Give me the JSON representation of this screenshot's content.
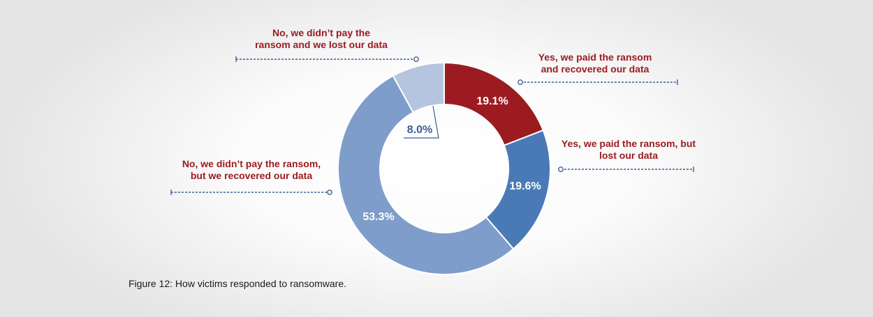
{
  "chart_data": {
    "type": "pie",
    "variant": "donut",
    "title": "",
    "slices": [
      {
        "label": "Yes, we paid the ransom\nand recovered our data",
        "value": 19.1,
        "display": "19.1%",
        "color": "#9b1b20"
      },
      {
        "label": "Yes, we paid the ransom, but\nlost our data",
        "value": 19.6,
        "display": "19.6%",
        "color": "#4a7ab5"
      },
      {
        "label": "No, we didn’t pay the ransom,\nbut we recovered our data",
        "value": 53.3,
        "display": "53.3%",
        "color": "#7f9dca"
      },
      {
        "label": "No, we didn’t pay the\nransom and we lost our data",
        "value": 8.0,
        "display": "8.0%",
        "color": "#b6c5df"
      }
    ],
    "leader_color": "#3d5f95"
  },
  "caption": "Figure 12: How victims responded to ransomware."
}
